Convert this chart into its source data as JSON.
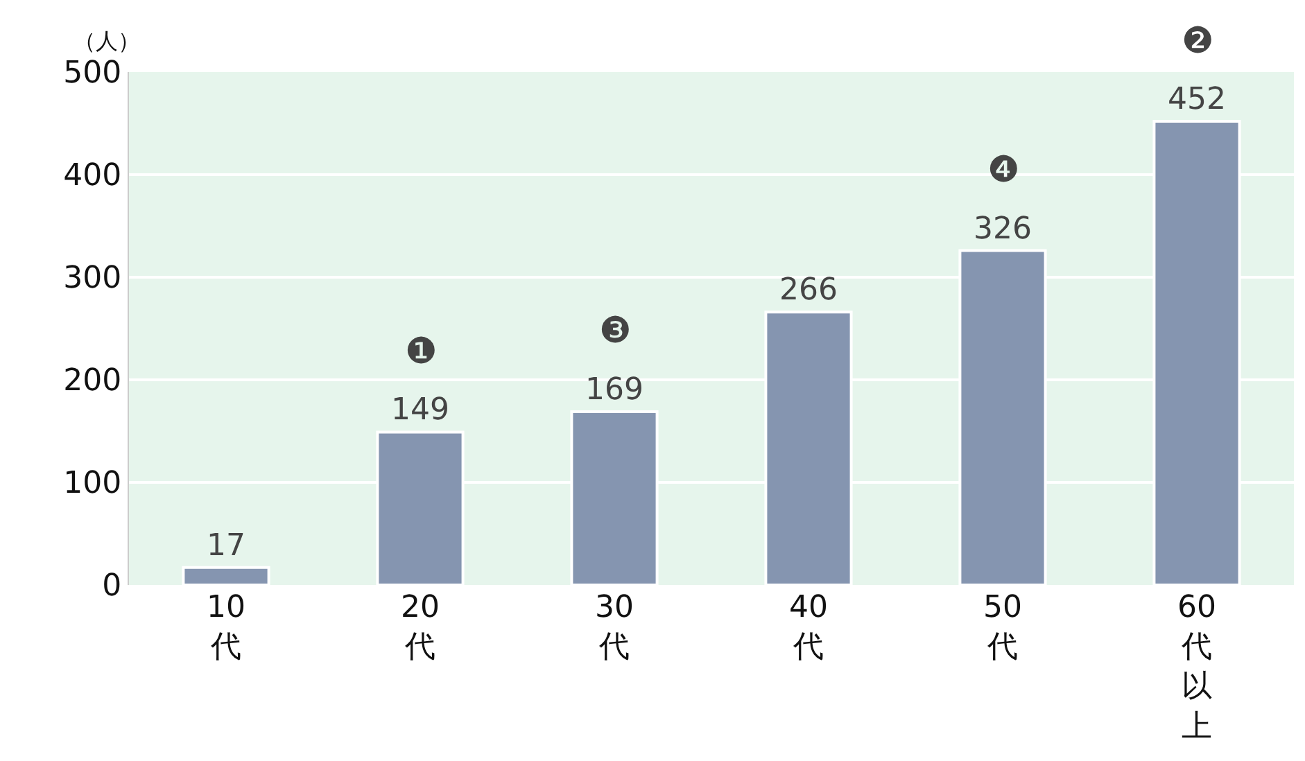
{
  "chart_data": {
    "type": "bar",
    "ylabel": "（人）",
    "categories": [
      "10代",
      "20代",
      "30代",
      "40代",
      "50代",
      "60代以上"
    ],
    "values": [
      17,
      149,
      169,
      266,
      326,
      452
    ],
    "color": "#8595b0",
    "ylim": [
      0,
      500
    ],
    "yticks": [
      0,
      100,
      200,
      300,
      400,
      500
    ],
    "grid": "y",
    "data_labels": true,
    "annotations": [
      {
        "text": "❶",
        "x": "20代",
        "y": 149
      },
      {
        "text": "❸",
        "x": "30代",
        "y": 169
      },
      {
        "text": "❷",
        "x": "60代以上",
        "y": 452
      },
      {
        "text": "❹",
        "x": "50代",
        "y": 326
      }
    ]
  }
}
